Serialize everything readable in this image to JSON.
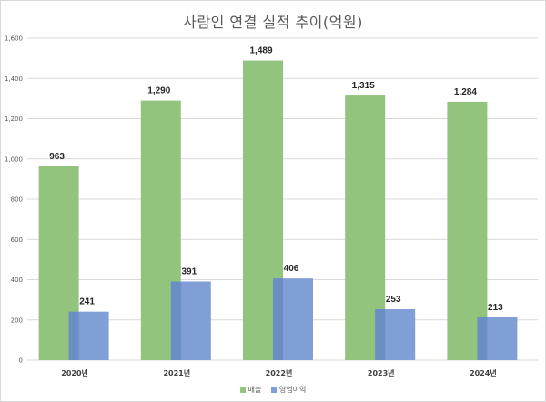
{
  "chart_data": {
    "type": "bar",
    "title": "사람인 연결 실적 추이(억원)",
    "categories": [
      "2020년",
      "2021년",
      "2022년",
      "2023년",
      "2024년"
    ],
    "series": [
      {
        "name": "매출",
        "color": "#93c47d",
        "values": [
          963,
          1290,
          1489,
          1315,
          1284
        ],
        "labels": [
          "963",
          "1,290",
          "1,489",
          "1,315",
          "1,284"
        ]
      },
      {
        "name": "영업이익",
        "color": "#7f9fd6",
        "values": [
          241,
          391,
          406,
          253,
          213
        ],
        "labels": [
          "241",
          "391",
          "406",
          "253",
          "213"
        ]
      }
    ],
    "ylim": [
      0,
      1600
    ],
    "yticks": [
      0,
      200,
      400,
      600,
      800,
      1000,
      1200,
      1400,
      1600
    ],
    "ytick_labels": [
      "0",
      "200",
      "400",
      "600",
      "800",
      "1,000",
      "1,200",
      "1,400",
      "1,600"
    ],
    "grid": true,
    "legend": "bottom"
  }
}
